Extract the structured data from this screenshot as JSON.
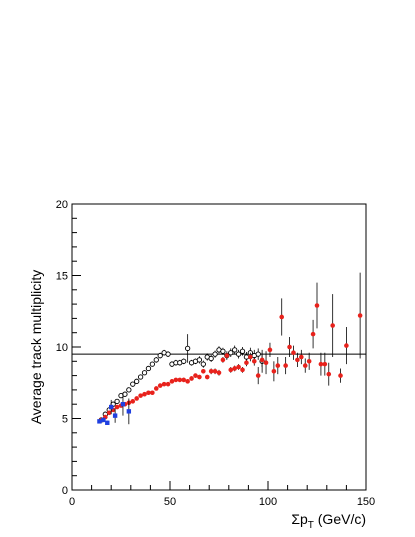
{
  "chart_data": {
    "type": "scatter",
    "title": "",
    "xlabel_symbol": "Σp",
    "xlabel_sub": "T",
    "xlabel_unit": " (GeV/c)",
    "ylabel": "Average track multiplicity",
    "xlim": [
      0,
      150
    ],
    "ylim": [
      0,
      20
    ],
    "xticks": [
      "0",
      "50",
      "100",
      "150"
    ],
    "yticks": [
      "0",
      "5",
      "10",
      "15",
      "20"
    ],
    "grid": false,
    "legend": "none",
    "reference_line": {
      "y": 9.5,
      "color": "#000000"
    },
    "series": [
      {
        "marker": "open-circle",
        "color": "#000000",
        "points": [
          {
            "x": 15,
            "y": 4.9,
            "err": 0.1
          },
          {
            "x": 17,
            "y": 5.3,
            "err": 0.1
          },
          {
            "x": 19,
            "y": 5.6,
            "err": 0.1
          },
          {
            "x": 21,
            "y": 6.0,
            "err": 0.1
          },
          {
            "x": 23,
            "y": 6.2,
            "err": 0.15
          },
          {
            "x": 25,
            "y": 6.6,
            "err": 0.15
          },
          {
            "x": 27,
            "y": 6.7,
            "err": 0.15
          },
          {
            "x": 29,
            "y": 7.0,
            "err": 0.15
          },
          {
            "x": 31,
            "y": 7.4,
            "err": 0.15
          },
          {
            "x": 33,
            "y": 7.6,
            "err": 0.15
          },
          {
            "x": 35,
            "y": 7.9,
            "err": 0.15
          },
          {
            "x": 37,
            "y": 8.2,
            "err": 0.15
          },
          {
            "x": 39,
            "y": 8.5,
            "err": 0.15
          },
          {
            "x": 41,
            "y": 8.8,
            "err": 0.15
          },
          {
            "x": 43,
            "y": 9.1,
            "err": 0.2
          },
          {
            "x": 45,
            "y": 9.4,
            "err": 0.2
          },
          {
            "x": 47,
            "y": 9.6,
            "err": 0.2
          },
          {
            "x": 49,
            "y": 9.5,
            "err": 0.2
          },
          {
            "x": 51,
            "y": 8.8,
            "err": 0.2
          },
          {
            "x": 53,
            "y": 8.9,
            "err": 0.2
          },
          {
            "x": 55,
            "y": 8.9,
            "err": 0.2
          },
          {
            "x": 57,
            "y": 9.0,
            "err": 0.2
          },
          {
            "x": 59,
            "y": 9.9,
            "err": 1.0
          },
          {
            "x": 61,
            "y": 8.9,
            "err": 0.2
          },
          {
            "x": 63,
            "y": 9.0,
            "err": 0.2
          },
          {
            "x": 65,
            "y": 9.1,
            "err": 0.25
          },
          {
            "x": 67,
            "y": 8.8,
            "err": 0.25
          },
          {
            "x": 69,
            "y": 9.3,
            "err": 0.25
          },
          {
            "x": 71,
            "y": 9.2,
            "err": 0.25
          },
          {
            "x": 73,
            "y": 9.5,
            "err": 0.25
          },
          {
            "x": 75,
            "y": 9.8,
            "err": 0.25
          },
          {
            "x": 77,
            "y": 9.7,
            "err": 0.25
          },
          {
            "x": 79,
            "y": 9.4,
            "err": 0.3
          },
          {
            "x": 81,
            "y": 9.6,
            "err": 0.3
          },
          {
            "x": 83,
            "y": 9.8,
            "err": 0.3
          },
          {
            "x": 85,
            "y": 9.5,
            "err": 0.3
          },
          {
            "x": 87,
            "y": 9.7,
            "err": 0.3
          },
          {
            "x": 89,
            "y": 9.3,
            "err": 0.35
          },
          {
            "x": 91,
            "y": 9.6,
            "err": 0.35
          },
          {
            "x": 93,
            "y": 9.4,
            "err": 0.4
          },
          {
            "x": 95,
            "y": 9.5,
            "err": 0.4
          },
          {
            "x": 97,
            "y": 9.0,
            "err": 0.8
          }
        ]
      },
      {
        "marker": "filled-circle",
        "color": "#e8221c",
        "points": [
          {
            "x": 15,
            "y": 4.9,
            "err": 0.1
          },
          {
            "x": 17,
            "y": 5.1,
            "err": 0.1
          },
          {
            "x": 19,
            "y": 5.4,
            "err": 0.1
          },
          {
            "x": 21,
            "y": 5.6,
            "err": 0.1
          },
          {
            "x": 23,
            "y": 5.8,
            "err": 0.1
          },
          {
            "x": 25,
            "y": 5.9,
            "err": 0.1
          },
          {
            "x": 27,
            "y": 6.0,
            "err": 0.1
          },
          {
            "x": 29,
            "y": 6.1,
            "err": 0.1
          },
          {
            "x": 31,
            "y": 6.2,
            "err": 0.1
          },
          {
            "x": 33,
            "y": 6.4,
            "err": 0.1
          },
          {
            "x": 35,
            "y": 6.6,
            "err": 0.1
          },
          {
            "x": 37,
            "y": 6.7,
            "err": 0.1
          },
          {
            "x": 39,
            "y": 6.8,
            "err": 0.1
          },
          {
            "x": 41,
            "y": 6.8,
            "err": 0.1
          },
          {
            "x": 43,
            "y": 7.1,
            "err": 0.1
          },
          {
            "x": 45,
            "y": 7.3,
            "err": 0.1
          },
          {
            "x": 47,
            "y": 7.4,
            "err": 0.1
          },
          {
            "x": 49,
            "y": 7.4,
            "err": 0.1
          },
          {
            "x": 51,
            "y": 7.6,
            "err": 0.1
          },
          {
            "x": 53,
            "y": 7.7,
            "err": 0.1
          },
          {
            "x": 55,
            "y": 7.7,
            "err": 0.1
          },
          {
            "x": 57,
            "y": 7.7,
            "err": 0.15
          },
          {
            "x": 59,
            "y": 7.6,
            "err": 0.15
          },
          {
            "x": 61,
            "y": 7.8,
            "err": 0.15
          },
          {
            "x": 63,
            "y": 8.0,
            "err": 0.15
          },
          {
            "x": 65,
            "y": 7.9,
            "err": 0.15
          },
          {
            "x": 67,
            "y": 8.3,
            "err": 0.15
          },
          {
            "x": 69,
            "y": 7.9,
            "err": 0.15
          },
          {
            "x": 71,
            "y": 8.3,
            "err": 0.2
          },
          {
            "x": 73,
            "y": 8.3,
            "err": 0.2
          },
          {
            "x": 75,
            "y": 8.2,
            "err": 0.2
          },
          {
            "x": 77,
            "y": 9.1,
            "err": 0.2
          },
          {
            "x": 79,
            "y": 9.4,
            "err": 0.2
          },
          {
            "x": 81,
            "y": 8.4,
            "err": 0.2
          },
          {
            "x": 83,
            "y": 8.5,
            "err": 0.2
          },
          {
            "x": 85,
            "y": 8.6,
            "err": 0.2
          },
          {
            "x": 87,
            "y": 8.4,
            "err": 0.2
          },
          {
            "x": 89,
            "y": 8.9,
            "err": 0.25
          },
          {
            "x": 91,
            "y": 9.3,
            "err": 0.3
          },
          {
            "x": 93,
            "y": 9.0,
            "err": 0.3
          },
          {
            "x": 95,
            "y": 8.0,
            "err": 0.6
          },
          {
            "x": 97,
            "y": 9.1,
            "err": 0.5
          },
          {
            "x": 99,
            "y": 8.9,
            "err": 0.8
          },
          {
            "x": 101,
            "y": 9.8,
            "err": 0.5
          },
          {
            "x": 103,
            "y": 8.3,
            "err": 0.7
          },
          {
            "x": 105,
            "y": 8.7,
            "err": 0.6
          },
          {
            "x": 107,
            "y": 12.1,
            "err": 1.3
          },
          {
            "x": 109,
            "y": 8.7,
            "err": 0.6
          },
          {
            "x": 111,
            "y": 10.0,
            "err": 0.7
          },
          {
            "x": 113,
            "y": 9.6,
            "err": 0.5
          },
          {
            "x": 115,
            "y": 9.1,
            "err": 0.5
          },
          {
            "x": 117,
            "y": 9.3,
            "err": 0.5
          },
          {
            "x": 119,
            "y": 8.7,
            "err": 0.5
          },
          {
            "x": 121,
            "y": 9.0,
            "err": 0.6
          },
          {
            "x": 123,
            "y": 10.9,
            "err": 1.0
          },
          {
            "x": 125,
            "y": 12.9,
            "err": 1.6
          },
          {
            "x": 127,
            "y": 8.8,
            "err": 0.8
          },
          {
            "x": 129,
            "y": 8.8,
            "err": 0.8
          },
          {
            "x": 131,
            "y": 8.1,
            "err": 0.8
          },
          {
            "x": 133,
            "y": 11.5,
            "err": 2.2
          },
          {
            "x": 137,
            "y": 8.0,
            "err": 0.5
          },
          {
            "x": 140,
            "y": 10.1,
            "err": 1.3
          },
          {
            "x": 147,
            "y": 12.2,
            "err": 3.0
          }
        ]
      },
      {
        "marker": "filled-square",
        "color": "#1f3fe0",
        "points": [
          {
            "x": 14,
            "y": 4.8,
            "err": 0.15
          },
          {
            "x": 16,
            "y": 4.9,
            "err": 0.15
          },
          {
            "x": 18,
            "y": 4.7,
            "err": 0.15
          },
          {
            "x": 20,
            "y": 5.8,
            "err": 0.5
          },
          {
            "x": 22,
            "y": 5.2,
            "err": 0.5
          },
          {
            "x": 26,
            "y": 6.0,
            "err": 0.8
          },
          {
            "x": 29,
            "y": 5.5,
            "err": 0.9
          }
        ]
      }
    ]
  }
}
